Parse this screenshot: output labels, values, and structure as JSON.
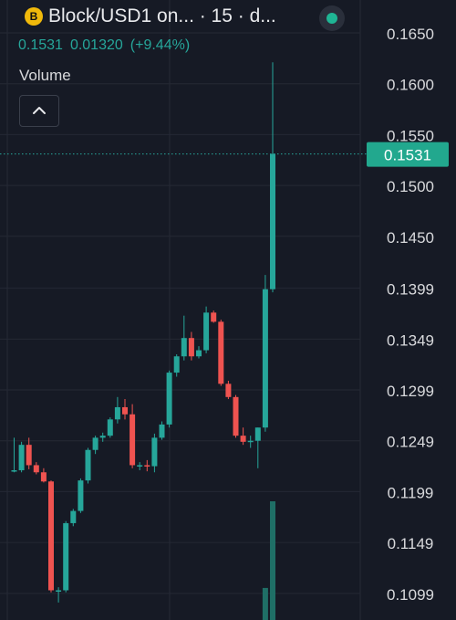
{
  "header": {
    "title": "Block/USD1 on... · 15 · d...",
    "logo_letter": "B",
    "status_color": "#1fb594"
  },
  "quote": {
    "last": "0.1531",
    "change": "0.01320",
    "change_pct": "(+9.44%)"
  },
  "volume": {
    "label": "Volume",
    "toggle_icon": "chevron-up-icon"
  },
  "colors": {
    "background": "#161a25",
    "up": "#26a69a",
    "down": "#ef5350",
    "grid": "#252935"
  },
  "chart_data": {
    "type": "candlestick",
    "price_axis": {
      "position": "right",
      "ticks": [
        "0.1650",
        "0.1600",
        "0.1550",
        "0.1500",
        "0.1450",
        "0.1399",
        "0.1349",
        "0.1299",
        "0.1249",
        "0.1199",
        "0.1149",
        "0.1099"
      ],
      "range": [
        0.1085,
        0.167
      ]
    },
    "last_price": {
      "value": 0.1531,
      "label": "0.1531"
    },
    "candles": [
      {
        "o": 0.122,
        "h": 0.1252,
        "l": 0.1218,
        "c": 0.122
      },
      {
        "o": 0.122,
        "h": 0.1248,
        "l": 0.1218,
        "c": 0.1245
      },
      {
        "o": 0.1245,
        "h": 0.1252,
        "l": 0.1221,
        "c": 0.1225
      },
      {
        "o": 0.1225,
        "h": 0.1228,
        "l": 0.1216,
        "c": 0.1218
      },
      {
        "o": 0.1218,
        "h": 0.1222,
        "l": 0.1208,
        "c": 0.1209
      },
      {
        "o": 0.1209,
        "h": 0.121,
        "l": 0.11,
        "c": 0.1102
      },
      {
        "o": 0.1102,
        "h": 0.1105,
        "l": 0.109,
        "c": 0.1102
      },
      {
        "o": 0.1102,
        "h": 0.117,
        "l": 0.11,
        "c": 0.1168
      },
      {
        "o": 0.1168,
        "h": 0.1182,
        "l": 0.1165,
        "c": 0.118
      },
      {
        "o": 0.118,
        "h": 0.1212,
        "l": 0.1178,
        "c": 0.121
      },
      {
        "o": 0.121,
        "h": 0.1242,
        "l": 0.1207,
        "c": 0.124
      },
      {
        "o": 0.124,
        "h": 0.1254,
        "l": 0.1236,
        "c": 0.1252
      },
      {
        "o": 0.1252,
        "h": 0.1257,
        "l": 0.1248,
        "c": 0.1254
      },
      {
        "o": 0.1254,
        "h": 0.1272,
        "l": 0.1252,
        "c": 0.127
      },
      {
        "o": 0.127,
        "h": 0.1292,
        "l": 0.1266,
        "c": 0.1282
      },
      {
        "o": 0.1282,
        "h": 0.129,
        "l": 0.127,
        "c": 0.1275
      },
      {
        "o": 0.1275,
        "h": 0.1285,
        "l": 0.1222,
        "c": 0.1225
      },
      {
        "o": 0.1225,
        "h": 0.1228,
        "l": 0.122,
        "c": 0.1225
      },
      {
        "o": 0.1225,
        "h": 0.123,
        "l": 0.1219,
        "c": 0.1224
      },
      {
        "o": 0.1224,
        "h": 0.1256,
        "l": 0.1218,
        "c": 0.1252
      },
      {
        "o": 0.1252,
        "h": 0.1268,
        "l": 0.125,
        "c": 0.1265
      },
      {
        "o": 0.1265,
        "h": 0.1318,
        "l": 0.1262,
        "c": 0.1316
      },
      {
        "o": 0.1316,
        "h": 0.1334,
        "l": 0.1312,
        "c": 0.1332
      },
      {
        "o": 0.1332,
        "h": 0.1372,
        "l": 0.1328,
        "c": 0.135
      },
      {
        "o": 0.135,
        "h": 0.1356,
        "l": 0.1328,
        "c": 0.1332
      },
      {
        "o": 0.1332,
        "h": 0.1342,
        "l": 0.133,
        "c": 0.1338
      },
      {
        "o": 0.1338,
        "h": 0.1381,
        "l": 0.1335,
        "c": 0.1375
      },
      {
        "o": 0.1375,
        "h": 0.1377,
        "l": 0.1365,
        "c": 0.1366
      },
      {
        "o": 0.1366,
        "h": 0.1368,
        "l": 0.1303,
        "c": 0.1305
      },
      {
        "o": 0.1305,
        "h": 0.1308,
        "l": 0.129,
        "c": 0.1292
      },
      {
        "o": 0.1292,
        "h": 0.1294,
        "l": 0.1252,
        "c": 0.1254
      },
      {
        "o": 0.1254,
        "h": 0.1262,
        "l": 0.1245,
        "c": 0.1248
      },
      {
        "o": 0.1248,
        "h": 0.1254,
        "l": 0.1242,
        "c": 0.1249
      },
      {
        "o": 0.1249,
        "h": 0.1262,
        "l": 0.1222,
        "c": 0.1262
      },
      {
        "o": 0.1262,
        "h": 0.1412,
        "l": 0.1258,
        "c": 0.1398
      },
      {
        "o": 0.1398,
        "h": 0.1621,
        "l": 0.1395,
        "c": 0.1531
      }
    ],
    "volumes_relative": [
      0,
      0,
      0,
      0,
      0,
      0,
      0,
      0,
      0,
      0,
      0,
      0,
      0,
      0,
      0,
      0,
      0,
      0,
      0,
      0,
      0,
      0,
      0,
      0,
      0,
      0,
      0,
      0,
      0,
      0,
      0,
      0,
      0,
      0,
      0.27,
      1.0
    ]
  }
}
